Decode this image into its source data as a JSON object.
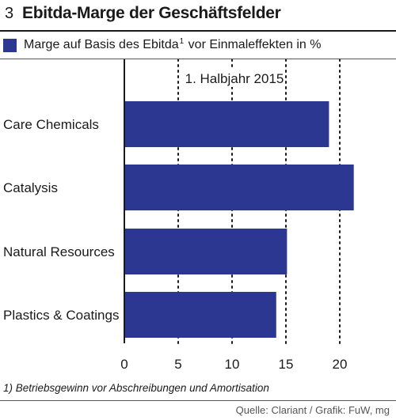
{
  "header": {
    "figure_number": "3",
    "title": "Ebitda-Marge der Geschäftsfelder"
  },
  "legend": {
    "label_pre": "Marge auf Basis des Ebitda",
    "footnote_mark": "1",
    "label_post": " vor Einmaleffekten in %"
  },
  "footnote": "1) Betriebsgewinn vor Abschreibungen und Amortisation",
  "source": "Quelle: Clariant / Grafik: FuW, mg",
  "colors": {
    "bar": "#2b3790",
    "text": "#1a1a1a",
    "grid": "#1a1a1a"
  },
  "chart_data": {
    "type": "bar",
    "orientation": "horizontal",
    "title": "Ebitda-Marge der Geschäftsfelder",
    "subtitle": "Marge auf Basis des Ebitda vor Einmaleffekten in %",
    "annotation": "1. Halbjahr 2015",
    "categories": [
      "Care Chemicals",
      "Catalysis",
      "Natural Resources",
      "Plastics & Coatings"
    ],
    "values": [
      19.0,
      21.3,
      15.1,
      14.1
    ],
    "xlim": [
      0,
      25
    ],
    "xticks": [
      0,
      5,
      10,
      15,
      20
    ],
    "grid": "dotted vertical",
    "legend_position": "top-left"
  }
}
